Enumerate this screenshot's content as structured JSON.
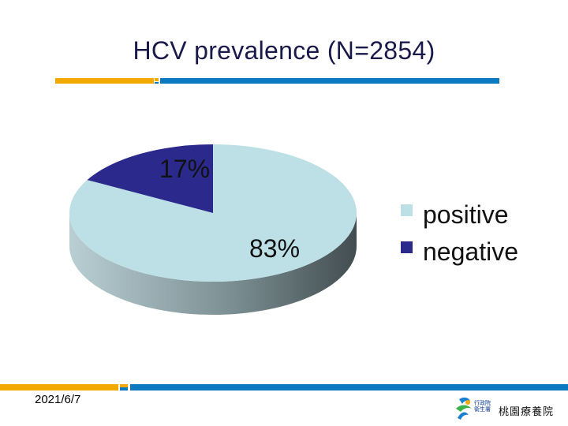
{
  "slide": {
    "title": "HCV prevalence (N=2854)",
    "date": "2021/6/7",
    "logo_text": "桃園療養院",
    "logo_small": "行政院\n衛生署"
  },
  "colors": {
    "title": "#1a1a4a",
    "accent_orange": "#f2a900",
    "accent_blue": "#0a79c0",
    "positive": "#bde0e6",
    "negative": "#2b2a8c"
  },
  "chart_data": {
    "type": "pie",
    "title": "HCV prevalence (N=2854)",
    "labels": [
      "positive",
      "negative"
    ],
    "values": [
      83,
      17
    ],
    "value_labels": [
      "83%",
      "17%"
    ],
    "legend_position": "right",
    "style": "3d"
  }
}
